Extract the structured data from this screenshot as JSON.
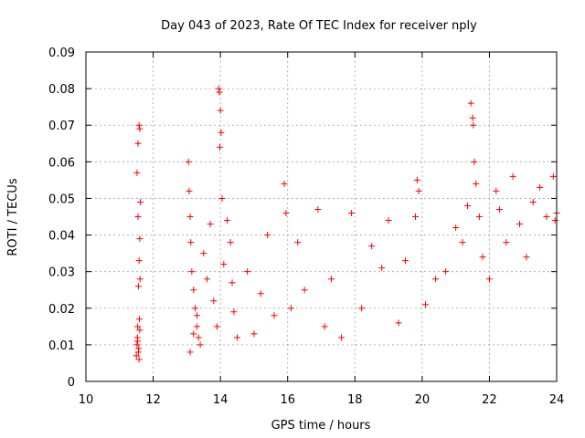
{
  "chart_data": {
    "type": "scatter",
    "title": "Day 043 of 2023, Rate Of TEC Index for receiver nply",
    "xlabel": "GPS time / hours",
    "ylabel": "ROTI / TECUs",
    "xlim": [
      10,
      24
    ],
    "ylim": [
      0,
      0.09
    ],
    "xticks": [
      "10",
      "12",
      "14",
      "16",
      "18",
      "20",
      "22",
      "24"
    ],
    "yticks": [
      "0",
      "0.01",
      "0.02",
      "0.03",
      "0.04",
      "0.05",
      "0.06",
      "0.07",
      "0.08",
      "0.09"
    ],
    "grid": true,
    "marker": "+",
    "color": "#ff0000",
    "series": [
      {
        "name": "ROTI",
        "x": [
          11.5,
          11.52,
          11.54,
          11.56,
          11.58,
          11.6,
          11.62,
          11.52,
          11.55,
          11.58,
          11.6,
          11.53,
          11.57,
          11.61,
          11.55,
          11.59,
          11.56,
          11.54,
          11.58,
          11.6,
          13.05,
          13.07,
          13.1,
          13.12,
          13.15,
          13.2,
          13.25,
          13.3,
          13.35,
          13.4,
          13.1,
          13.2,
          13.3,
          13.5,
          13.6,
          13.7,
          13.8,
          13.9,
          13.95,
          13.97,
          14.0,
          14.02,
          13.98,
          14.05,
          14.1,
          14.2,
          14.3,
          14.35,
          14.4,
          14.5,
          14.8,
          15.0,
          15.2,
          15.4,
          15.6,
          15.9,
          15.95,
          16.1,
          16.3,
          16.5,
          16.9,
          17.1,
          17.3,
          17.6,
          17.9,
          18.2,
          18.5,
          18.8,
          19.0,
          19.3,
          19.5,
          19.8,
          19.85,
          19.9,
          20.1,
          20.4,
          20.7,
          21.0,
          21.2,
          21.35,
          21.45,
          21.5,
          21.52,
          21.55,
          21.6,
          21.7,
          21.8,
          22.0,
          22.2,
          22.3,
          22.5,
          22.7,
          22.9,
          23.1,
          23.3,
          23.5,
          23.7,
          23.9,
          23.95,
          24.0
        ],
        "y": [
          0.007,
          0.01,
          0.015,
          0.026,
          0.033,
          0.039,
          0.049,
          0.057,
          0.065,
          0.07,
          0.069,
          0.012,
          0.009,
          0.028,
          0.045,
          0.017,
          0.008,
          0.011,
          0.006,
          0.014,
          0.06,
          0.052,
          0.045,
          0.038,
          0.03,
          0.025,
          0.02,
          0.015,
          0.012,
          0.01,
          0.008,
          0.013,
          0.018,
          0.035,
          0.028,
          0.043,
          0.022,
          0.015,
          0.08,
          0.079,
          0.074,
          0.068,
          0.064,
          0.05,
          0.032,
          0.044,
          0.038,
          0.027,
          0.019,
          0.012,
          0.03,
          0.013,
          0.024,
          0.04,
          0.018,
          0.054,
          0.046,
          0.02,
          0.038,
          0.025,
          0.047,
          0.015,
          0.028,
          0.012,
          0.046,
          0.02,
          0.037,
          0.031,
          0.044,
          0.016,
          0.033,
          0.045,
          0.055,
          0.052,
          0.021,
          0.028,
          0.03,
          0.042,
          0.038,
          0.048,
          0.076,
          0.072,
          0.07,
          0.06,
          0.054,
          0.045,
          0.034,
          0.028,
          0.052,
          0.047,
          0.038,
          0.056,
          0.043,
          0.034,
          0.049,
          0.053,
          0.045,
          0.056,
          0.044,
          0.046
        ]
      }
    ]
  }
}
